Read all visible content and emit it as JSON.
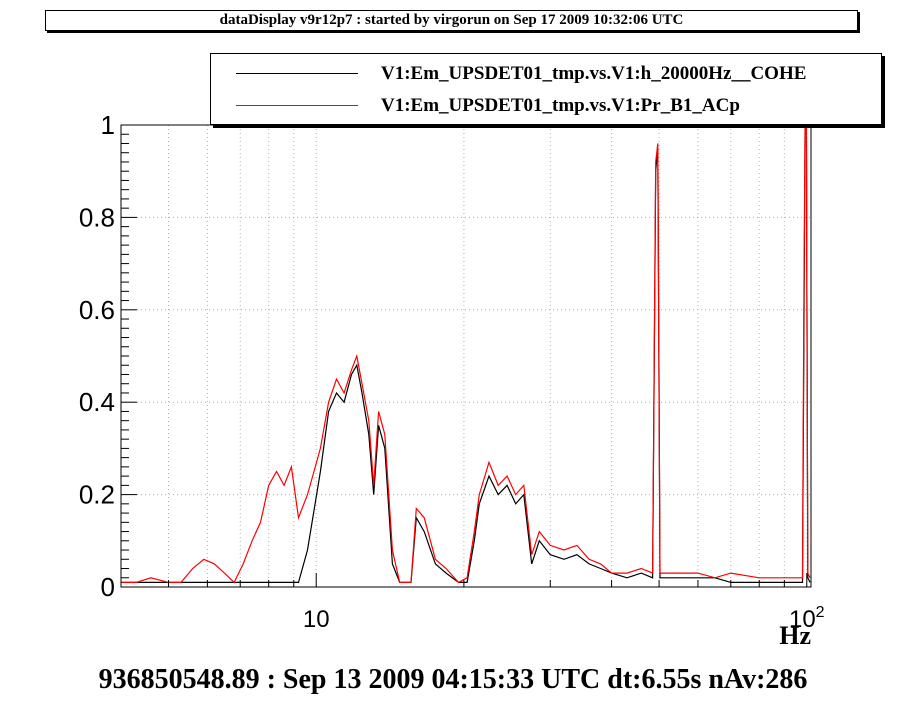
{
  "window_title": "dataDisplay v9r12p7 : started by virgorun on Sep 17 2009 10:32:06 UTC",
  "footer_text": "936850548.89 : Sep 13 2009 04:15:33 UTC dt:6.55s nAv:286",
  "colors": {
    "series1": "#000000",
    "series2": "#ff0000",
    "grid": "#b0b0b0"
  },
  "chart_data": {
    "type": "line",
    "x_scale": "log",
    "xlim": [
      4,
      102
    ],
    "ylim": [
      0,
      1
    ],
    "xlabel": "Hz",
    "ylabel": "",
    "grid": true,
    "legend_position": "top-right",
    "y_ticks": [
      {
        "value": 0,
        "label": "0"
      },
      {
        "value": 0.2,
        "label": "0.2"
      },
      {
        "value": 0.4,
        "label": "0.4"
      },
      {
        "value": 0.6,
        "label": "0.6"
      },
      {
        "value": 0.8,
        "label": "0.8"
      },
      {
        "value": 1,
        "label": "1"
      }
    ],
    "x_tick_labels": [
      {
        "value": 10,
        "label": "10"
      },
      {
        "value": 100,
        "label": "10",
        "exponent": "2"
      }
    ],
    "series": [
      {
        "name": "V1:Em_UPSDET01_tmp.vs.V1:h_20000Hz__COHE",
        "color": "#000000",
        "points": [
          [
            4,
            0.01
          ],
          [
            5,
            0.01
          ],
          [
            6,
            0.01
          ],
          [
            7,
            0.01
          ],
          [
            8.5,
            0.01
          ],
          [
            9.2,
            0.01
          ],
          [
            9.6,
            0.08
          ],
          [
            10.2,
            0.25
          ],
          [
            10.6,
            0.38
          ],
          [
            11.0,
            0.42
          ],
          [
            11.4,
            0.4
          ],
          [
            11.8,
            0.46
          ],
          [
            12.1,
            0.48
          ],
          [
            12.4,
            0.42
          ],
          [
            12.8,
            0.33
          ],
          [
            13.1,
            0.2
          ],
          [
            13.4,
            0.35
          ],
          [
            13.8,
            0.3
          ],
          [
            14.3,
            0.05
          ],
          [
            14.8,
            0.01
          ],
          [
            15.6,
            0.01
          ],
          [
            16.0,
            0.15
          ],
          [
            16.6,
            0.12
          ],
          [
            17.5,
            0.05
          ],
          [
            18.4,
            0.03
          ],
          [
            19.5,
            0.01
          ],
          [
            20.3,
            0.01
          ],
          [
            21.0,
            0.1
          ],
          [
            21.5,
            0.18
          ],
          [
            22.5,
            0.24
          ],
          [
            23.5,
            0.2
          ],
          [
            24.5,
            0.22
          ],
          [
            25.5,
            0.18
          ],
          [
            26.5,
            0.2
          ],
          [
            27.5,
            0.05
          ],
          [
            28.5,
            0.1
          ],
          [
            30,
            0.07
          ],
          [
            32,
            0.06
          ],
          [
            34,
            0.07
          ],
          [
            36,
            0.05
          ],
          [
            38,
            0.04
          ],
          [
            40,
            0.03
          ],
          [
            43,
            0.02
          ],
          [
            46,
            0.03
          ],
          [
            48.5,
            0.02
          ],
          [
            49.2,
            0.9
          ],
          [
            49.7,
            0.95
          ],
          [
            50.2,
            0.02
          ],
          [
            55,
            0.02
          ],
          [
            60,
            0.02
          ],
          [
            65,
            0.02
          ],
          [
            70,
            0.01
          ],
          [
            80,
            0.01
          ],
          [
            90,
            0.01
          ],
          [
            98,
            0.01
          ],
          [
            98.6,
            0.5
          ],
          [
            99.2,
            1.0
          ],
          [
            99.8,
            0.99
          ],
          [
            100.5,
            0.02
          ],
          [
            101.5,
            0.01
          ]
        ]
      },
      {
        "name": "V1:Em_UPSDET01_tmp.vs.V1:Pr_B1_ACp",
        "color": "#ff0000",
        "points": [
          [
            4,
            0.01
          ],
          [
            4.3,
            0.01
          ],
          [
            4.6,
            0.02
          ],
          [
            5.0,
            0.01
          ],
          [
            5.3,
            0.01
          ],
          [
            5.6,
            0.04
          ],
          [
            5.9,
            0.06
          ],
          [
            6.2,
            0.05
          ],
          [
            6.5,
            0.03
          ],
          [
            6.8,
            0.01
          ],
          [
            7.1,
            0.05
          ],
          [
            7.4,
            0.1
          ],
          [
            7.7,
            0.14
          ],
          [
            8.0,
            0.22
          ],
          [
            8.3,
            0.25
          ],
          [
            8.6,
            0.22
          ],
          [
            8.9,
            0.26
          ],
          [
            9.2,
            0.15
          ],
          [
            9.6,
            0.2
          ],
          [
            10.2,
            0.3
          ],
          [
            10.6,
            0.4
          ],
          [
            11.0,
            0.45
          ],
          [
            11.4,
            0.42
          ],
          [
            11.8,
            0.47
          ],
          [
            12.1,
            0.5
          ],
          [
            12.4,
            0.44
          ],
          [
            12.8,
            0.36
          ],
          [
            13.1,
            0.22
          ],
          [
            13.4,
            0.38
          ],
          [
            13.8,
            0.33
          ],
          [
            14.3,
            0.08
          ],
          [
            14.8,
            0.01
          ],
          [
            15.6,
            0.01
          ],
          [
            16.0,
            0.17
          ],
          [
            16.6,
            0.15
          ],
          [
            17.5,
            0.06
          ],
          [
            18.4,
            0.04
          ],
          [
            19.5,
            0.01
          ],
          [
            20.3,
            0.02
          ],
          [
            21.0,
            0.12
          ],
          [
            21.5,
            0.2
          ],
          [
            22.5,
            0.27
          ],
          [
            23.5,
            0.22
          ],
          [
            24.5,
            0.24
          ],
          [
            25.5,
            0.2
          ],
          [
            26.5,
            0.22
          ],
          [
            27.5,
            0.07
          ],
          [
            28.5,
            0.12
          ],
          [
            30,
            0.09
          ],
          [
            32,
            0.08
          ],
          [
            34,
            0.09
          ],
          [
            36,
            0.06
          ],
          [
            38,
            0.05
          ],
          [
            40,
            0.03
          ],
          [
            43,
            0.03
          ],
          [
            46,
            0.04
          ],
          [
            48.5,
            0.03
          ],
          [
            49.2,
            0.92
          ],
          [
            49.7,
            0.96
          ],
          [
            50.2,
            0.03
          ],
          [
            55,
            0.03
          ],
          [
            60,
            0.03
          ],
          [
            65,
            0.02
          ],
          [
            70,
            0.03
          ],
          [
            80,
            0.02
          ],
          [
            90,
            0.02
          ],
          [
            98,
            0.02
          ],
          [
            98.6,
            0.6
          ],
          [
            99.2,
            1.0
          ],
          [
            99.8,
            1.0
          ],
          [
            100.5,
            0.03
          ],
          [
            101.5,
            0.02
          ]
        ]
      }
    ]
  }
}
